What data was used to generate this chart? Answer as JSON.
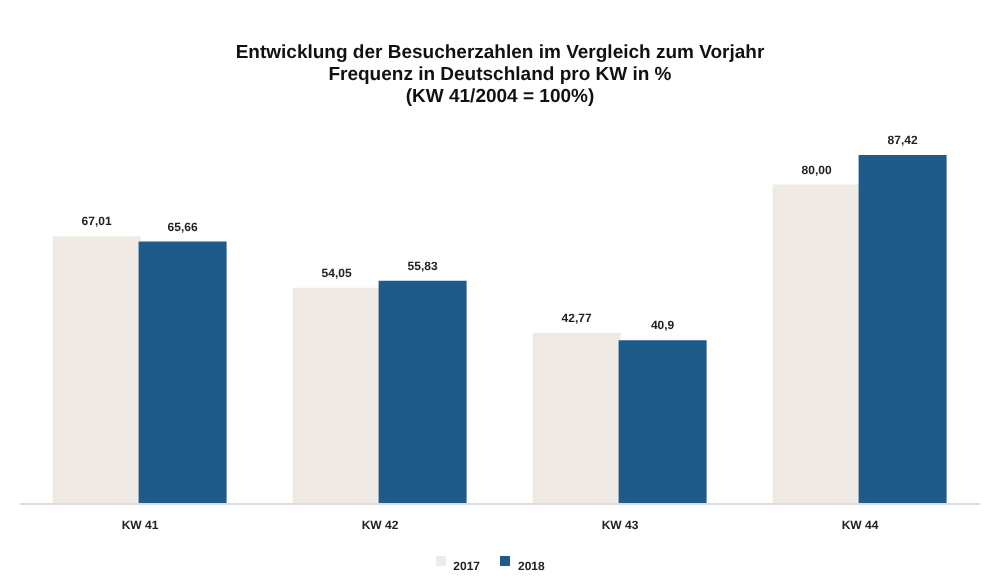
{
  "chart_data": {
    "type": "bar",
    "title": "Entwicklung der Besucherzahlen im Vergleich zum Vorjahr",
    "subtitle": "Frequenz in Deutschland pro KW in %\n(KW 41/2004 = 100%)",
    "categories": [
      "KW 41",
      "KW 42",
      "KW 43",
      "KW 44"
    ],
    "series": [
      {
        "name": "2017",
        "color": "#efebe4",
        "values": [
          67.01,
          54.05,
          42.77,
          80.0
        ],
        "value_labels": [
          "67,01",
          "54,05",
          "42,77",
          "80,00"
        ]
      },
      {
        "name": "2018",
        "color": "#1f5b8a",
        "values": [
          65.66,
          55.83,
          40.9,
          87.42
        ],
        "value_labels": [
          "65,66",
          "55,83",
          "40,9",
          "87,42"
        ]
      }
    ],
    "legend": "bottom",
    "grid": false
  }
}
